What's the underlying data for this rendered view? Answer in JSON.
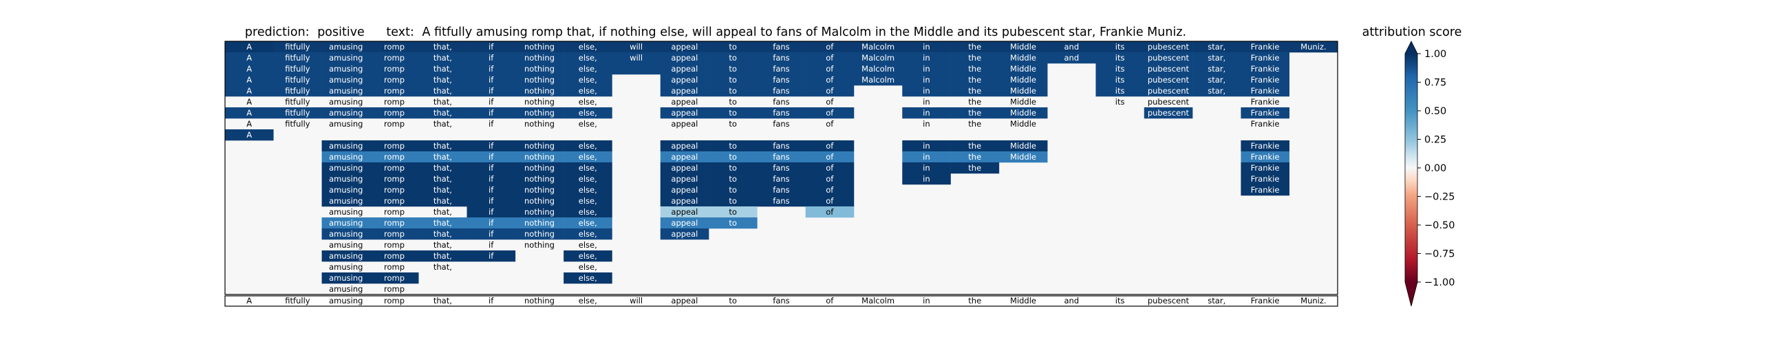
{
  "chart_data": {
    "type": "heatmap",
    "title_prediction_label": "prediction:",
    "title_prediction_value": "positive",
    "title_text_label": "text:",
    "title_text_value": "A fitfully amusing romp that, if nothing else, will appeal to fans of Malcolm in the Middle and its pubescent star, Frankie Muniz.",
    "tokens": [
      "A",
      "fitfully",
      "amusing",
      "romp",
      "that,",
      "if",
      "nothing",
      "else,",
      "will",
      "appeal",
      "to",
      "fans",
      "of",
      "Malcolm",
      "in",
      "the",
      "Middle",
      "and",
      "its",
      "pubescent",
      "star,",
      "Frankie",
      "Muniz."
    ],
    "row_spans": [
      [
        0,
        22
      ],
      [
        0,
        21
      ],
      [
        0,
        21
      ],
      [
        0,
        21
      ],
      [
        0,
        21
      ],
      [
        0,
        21
      ],
      [
        0,
        21
      ],
      [
        0,
        21
      ],
      [
        0,
        0
      ],
      [
        2,
        21
      ],
      [
        2,
        21
      ],
      [
        2,
        21
      ],
      [
        2,
        21
      ],
      [
        2,
        21
      ],
      [
        2,
        21
      ],
      [
        2,
        21
      ],
      [
        2,
        21
      ],
      [
        2,
        21
      ],
      [
        2,
        21
      ],
      [
        2,
        21
      ],
      [
        2,
        21
      ],
      [
        2,
        21
      ],
      [
        2,
        21
      ]
    ],
    "rows": [
      [
        0.97,
        0.96,
        0.96,
        0.96,
        0.96,
        0.96,
        0.96,
        0.96,
        0.96,
        0.96,
        0.96,
        0.96,
        0.96,
        0.96,
        0.96,
        0.96,
        0.96,
        0.96,
        0.96,
        0.96,
        0.96,
        0.96,
        0.96
      ],
      [
        0.92,
        0.92,
        0.92,
        0.92,
        0.92,
        0.92,
        0.92,
        0.92,
        0.92,
        0.92,
        0.92,
        0.92,
        0.92,
        0.92,
        0.92,
        0.92,
        0.92,
        0.92,
        0.92,
        0.92,
        0.92,
        0.92,
        null
      ],
      [
        0.92,
        0.92,
        0.92,
        0.92,
        0.92,
        0.92,
        0.92,
        0.92,
        0.92,
        0.92,
        0.92,
        0.92,
        0.92,
        0.92,
        0.92,
        0.92,
        0.92,
        0,
        0.92,
        0.92,
        0.92,
        0.92,
        null
      ],
      [
        0.92,
        0.92,
        0.92,
        0.92,
        0.92,
        0.92,
        0.92,
        0.92,
        0,
        0.92,
        0.92,
        0.92,
        0.92,
        0.92,
        0.92,
        0.92,
        0.92,
        0,
        0.92,
        0.92,
        0.92,
        0.92,
        null
      ],
      [
        0.92,
        0.92,
        0.92,
        0.92,
        0.92,
        0.92,
        0.92,
        0.92,
        0,
        0.92,
        0.92,
        0.92,
        0.92,
        0,
        0.92,
        0.92,
        0.92,
        0,
        0.92,
        0.92,
        0.92,
        0.92,
        null
      ],
      [
        0,
        0,
        0,
        0,
        0,
        0,
        0,
        0,
        0,
        0,
        0,
        0,
        0,
        0,
        0,
        0,
        0,
        0,
        0,
        0,
        0,
        0,
        null
      ],
      [
        0.92,
        0.92,
        0.92,
        0.92,
        0.92,
        0.92,
        0.92,
        0.92,
        0,
        0.92,
        0.92,
        0.92,
        0.92,
        0,
        0.92,
        0.92,
        0.92,
        0,
        0,
        0.92,
        0,
        0.92,
        null
      ],
      [
        0,
        0,
        0,
        0,
        0,
        0,
        0,
        0,
        0,
        0,
        0,
        0,
        0,
        0,
        0,
        0,
        0,
        0,
        0,
        0,
        0,
        0,
        null
      ],
      [
        0.95,
        null,
        null,
        null,
        null,
        null,
        null,
        null,
        null,
        null,
        null,
        null,
        null,
        null,
        null,
        null,
        null,
        null,
        null,
        null,
        null,
        null,
        null
      ],
      [
        null,
        null,
        0.97,
        0.97,
        0.97,
        0.97,
        0.97,
        0.97,
        0,
        0.97,
        0.97,
        0.97,
        0.97,
        0,
        0.97,
        0.97,
        0.97,
        0,
        0,
        0,
        0,
        0.97,
        null
      ],
      [
        null,
        null,
        0.65,
        0.65,
        0.65,
        0.65,
        0.65,
        0.65,
        0,
        0.65,
        0.65,
        0.65,
        0.65,
        0,
        0.65,
        0.65,
        0.65,
        0,
        0,
        0,
        0,
        0.65,
        null
      ],
      [
        null,
        null,
        0.97,
        0.97,
        0.97,
        0.97,
        0.97,
        0.97,
        0,
        0.97,
        0.97,
        0.97,
        0.97,
        0,
        0.97,
        0.97,
        0,
        0,
        0,
        0,
        0,
        0.97,
        null
      ],
      [
        null,
        null,
        0.97,
        0.97,
        0.97,
        0.97,
        0.97,
        0.97,
        0,
        0.97,
        0.97,
        0.97,
        0.97,
        0,
        0.97,
        0,
        0,
        0,
        0,
        0,
        0,
        0.97,
        null
      ],
      [
        null,
        null,
        0.97,
        0.97,
        0.97,
        0.97,
        0.97,
        0.97,
        0,
        0.97,
        0.97,
        0.97,
        0.97,
        0,
        0,
        0,
        0,
        0,
        0,
        0,
        0,
        0.97,
        null
      ],
      [
        null,
        null,
        0.97,
        0.97,
        0.97,
        0.97,
        0.97,
        0.97,
        0,
        0.97,
        0.97,
        0.97,
        0.97,
        0,
        0,
        0,
        0,
        0,
        0,
        0,
        0,
        0,
        null
      ],
      [
        null,
        null,
        0,
        0,
        0,
        0.97,
        0.97,
        0.97,
        0,
        0.2,
        0.2,
        0,
        0.3,
        0,
        0,
        0,
        0,
        0,
        0,
        0,
        0,
        0,
        null
      ],
      [
        null,
        null,
        0.65,
        0.65,
        0.65,
        0.65,
        0.65,
        0.65,
        0,
        0.65,
        0.65,
        0,
        0,
        0,
        0,
        0,
        0,
        0,
        0,
        0,
        0,
        0,
        null
      ],
      [
        null,
        null,
        0.92,
        0.92,
        0.92,
        0.92,
        0.92,
        0.92,
        0,
        0.92,
        0,
        0,
        0,
        0,
        0,
        0,
        0,
        0,
        0,
        0,
        0,
        0,
        null
      ],
      [
        null,
        null,
        0,
        0,
        0,
        0,
        0,
        0,
        0,
        0,
        0,
        0,
        0,
        0,
        0,
        0,
        0,
        0,
        0,
        0,
        0,
        0,
        null
      ],
      [
        null,
        null,
        0.97,
        0.97,
        0.97,
        0.97,
        0,
        0.97,
        0,
        0,
        0,
        0,
        0,
        0,
        0,
        0,
        0,
        0,
        0,
        0,
        0,
        0,
        null
      ],
      [
        null,
        null,
        0,
        0,
        0,
        0,
        0,
        0,
        0,
        0,
        0,
        0,
        0,
        0,
        0,
        0,
        0,
        0,
        0,
        0,
        0,
        0,
        null
      ],
      [
        null,
        null,
        0.97,
        0.97,
        0,
        0,
        0,
        0.97,
        0,
        0,
        0,
        0,
        0,
        0,
        0,
        0,
        0,
        0,
        0,
        0,
        0,
        0,
        null
      ],
      [
        null,
        null,
        0,
        0,
        0,
        0,
        0,
        0,
        0,
        0,
        0,
        0,
        0,
        0,
        0,
        0,
        0,
        0,
        0,
        0,
        0,
        0,
        null
      ]
    ],
    "row_labels_shown": [
      [
        0,
        1,
        2,
        3,
        4,
        5,
        6,
        7,
        8,
        9,
        10,
        11,
        12,
        13,
        14,
        15,
        16,
        17,
        18,
        19,
        20,
        21,
        22
      ],
      [
        0,
        1,
        2,
        3,
        4,
        5,
        6,
        7,
        8,
        9,
        10,
        11,
        12,
        13,
        14,
        15,
        16,
        17,
        18,
        19,
        20,
        21
      ],
      [
        0,
        1,
        2,
        3,
        4,
        5,
        6,
        7,
        9,
        10,
        11,
        12,
        13,
        14,
        15,
        16,
        18,
        19,
        20,
        21
      ],
      [
        0,
        1,
        2,
        3,
        4,
        5,
        6,
        7,
        9,
        10,
        11,
        12,
        13,
        14,
        15,
        16,
        18,
        19,
        20,
        21
      ],
      [
        0,
        1,
        2,
        3,
        4,
        5,
        6,
        7,
        9,
        10,
        11,
        12,
        14,
        15,
        16,
        18,
        19,
        20,
        21
      ],
      [
        0,
        1,
        2,
        3,
        4,
        5,
        6,
        7,
        9,
        10,
        11,
        12,
        14,
        15,
        16,
        18,
        19,
        21
      ],
      [
        0,
        1,
        2,
        3,
        4,
        5,
        6,
        7,
        9,
        10,
        11,
        12,
        14,
        15,
        16,
        19,
        21
      ],
      [
        0,
        1,
        2,
        3,
        4,
        5,
        6,
        7,
        9,
        10,
        11,
        12,
        14,
        15,
        16,
        21
      ],
      [
        0
      ],
      [
        2,
        3,
        4,
        5,
        6,
        7,
        9,
        10,
        11,
        12,
        14,
        15,
        16,
        21
      ],
      [
        2,
        3,
        4,
        5,
        6,
        7,
        9,
        10,
        11,
        12,
        14,
        15,
        16,
        21
      ],
      [
        2,
        3,
        4,
        5,
        6,
        7,
        9,
        10,
        11,
        12,
        14,
        15,
        21
      ],
      [
        2,
        3,
        4,
        5,
        6,
        7,
        9,
        10,
        11,
        12,
        14,
        21
      ],
      [
        2,
        3,
        4,
        5,
        6,
        7,
        9,
        10,
        11,
        12,
        21
      ],
      [
        2,
        3,
        4,
        5,
        6,
        7,
        9,
        10,
        11,
        12
      ],
      [
        2,
        3,
        4,
        5,
        6,
        7,
        9,
        10,
        12
      ],
      [
        2,
        3,
        4,
        5,
        6,
        7,
        9,
        10
      ],
      [
        2,
        3,
        4,
        5,
        6,
        7,
        9
      ],
      [
        2,
        3,
        4,
        5,
        6,
        7
      ],
      [
        2,
        3,
        4,
        5,
        7
      ],
      [
        2,
        3,
        4,
        7
      ],
      [
        2,
        3,
        7
      ],
      [
        2,
        3
      ]
    ],
    "colorbar": {
      "label": "attribution score",
      "vmin": -1.0,
      "vmax": 1.0,
      "ticks": [
        "1.00",
        "0.75",
        "0.50",
        "0.25",
        "0.00",
        "−0.25",
        "−0.50",
        "−0.75",
        "−1.00"
      ],
      "colormap": "RdBu"
    }
  }
}
